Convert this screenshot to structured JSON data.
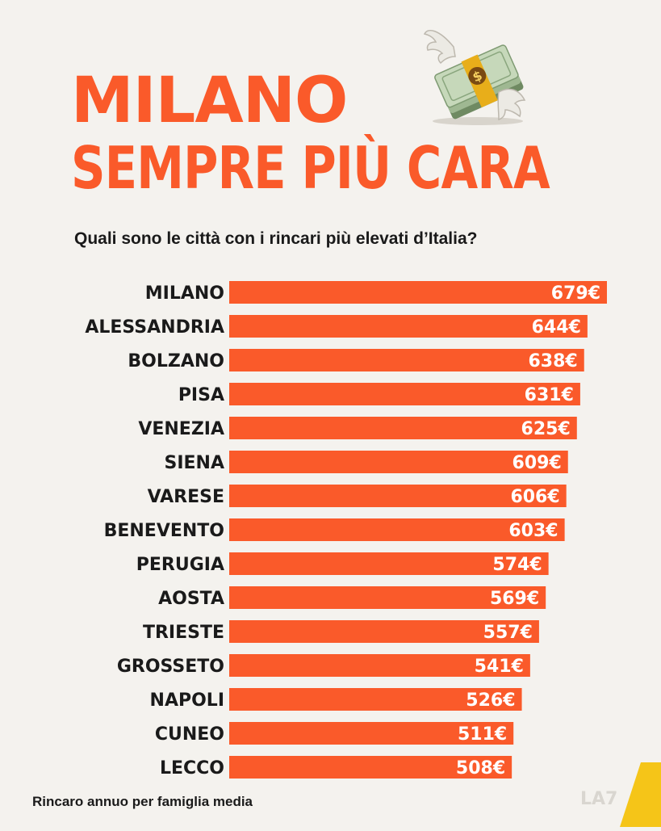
{
  "title_line1": "MILANO",
  "title_line2": "SEMPRE PIÙ CARA",
  "subtitle": "Quali sono le città con i rincari più elevati d’Italia?",
  "footer": "Rincaro annuo per famiglia media",
  "logo_text": "LA7",
  "colors": {
    "accent": "#fa5a2a",
    "text": "#1a1a1a",
    "background": "#f4f2ee",
    "logo_yellow": "#f5c518"
  },
  "icons": {
    "header": "flying-money-icon"
  },
  "chart_data": {
    "type": "bar",
    "orientation": "horizontal",
    "unit": "€",
    "categories": [
      "MILANO",
      "ALESSANDRIA",
      "BOLZANO",
      "PISA",
      "VENEZIA",
      "SIENA",
      "VARESE",
      "BENEVENTO",
      "PERUGIA",
      "AOSTA",
      "TRIESTE",
      "GROSSETO",
      "NAPOLI",
      "CUNEO",
      "LECCO"
    ],
    "values": [
      679,
      644,
      638,
      631,
      625,
      609,
      606,
      603,
      574,
      569,
      557,
      541,
      526,
      511,
      508
    ],
    "labels": [
      "679€",
      "644€",
      "638€",
      "631€",
      "625€",
      "609€",
      "606€",
      "603€",
      "574€",
      "569€",
      "557€",
      "541€",
      "526€",
      "511€",
      "508€"
    ]
  }
}
